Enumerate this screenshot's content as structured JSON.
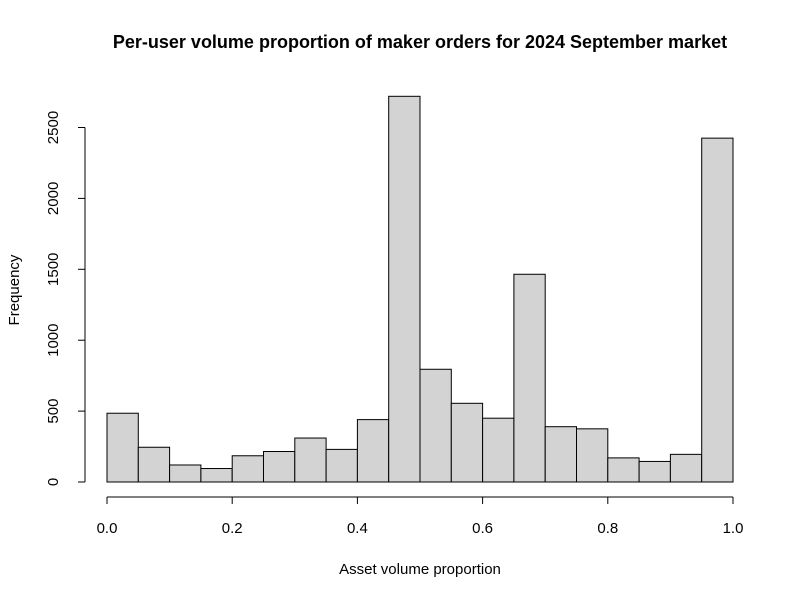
{
  "chart_data": {
    "type": "bar",
    "title": "Per-user volume proportion of maker orders for 2024 September market",
    "xlabel": "Asset volume proportion",
    "ylabel": "Frequency",
    "xlim": [
      0,
      1
    ],
    "ylim": [
      0,
      2700
    ],
    "bin_width": 0.05,
    "bins": [
      0.0,
      0.05,
      0.1,
      0.15,
      0.2,
      0.25,
      0.3,
      0.35,
      0.4,
      0.45,
      0.5,
      0.55,
      0.6,
      0.65,
      0.7,
      0.75,
      0.8,
      0.85,
      0.9,
      0.95
    ],
    "values": [
      485,
      245,
      120,
      95,
      185,
      215,
      310,
      230,
      440,
      2720,
      795,
      555,
      450,
      1465,
      390,
      375,
      170,
      145,
      195,
      2425
    ],
    "x_ticks": [
      0.0,
      0.2,
      0.4,
      0.6,
      0.8,
      1.0
    ],
    "x_tick_labels": [
      "0.0",
      "0.2",
      "0.4",
      "0.6",
      "0.8",
      "1.0"
    ],
    "y_ticks": [
      0,
      500,
      1000,
      1500,
      2000,
      2500
    ],
    "y_tick_labels": [
      "0",
      "500",
      "1000",
      "1500",
      "2000",
      "2500"
    ],
    "bar_color": "#d3d3d3",
    "bar_edge_color": "#000000",
    "grid": false
  }
}
